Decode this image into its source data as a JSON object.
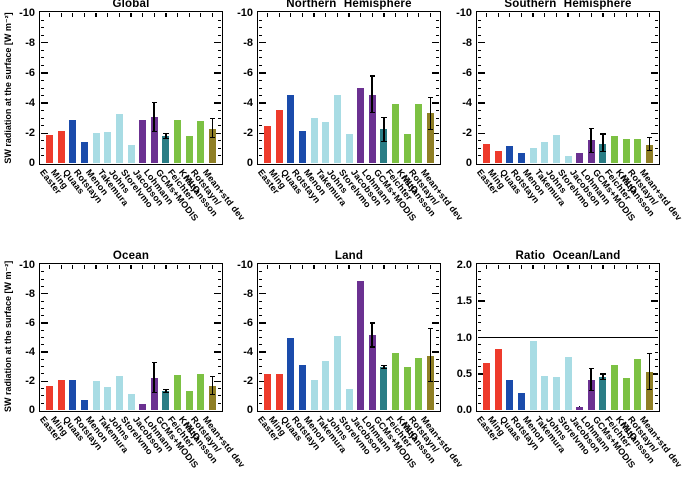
{
  "chart_meta": {
    "ylabel": "SW radiation at the surface [W m⁻²]",
    "categories": [
      "Easter",
      "Ming",
      "Quaas",
      "Rotstayn",
      "Menon",
      "Takemura",
      "Johns",
      "Storelvmo",
      "Jacobson",
      "Lohmann",
      "GCMs+MODIS",
      "Feichter",
      "Kristjansson",
      "Rotstayn/MLO",
      "Mean+std dev"
    ],
    "display_labels": [
      "Easter",
      "Ming",
      "Quaas",
      "Rotstayn",
      "Menon",
      "Takemura",
      "Johns",
      "Storelvmo",
      "Jacobson",
      "Lohmann",
      "GCMs+MODIS",
      "Feichter",
      "Kristjansson",
      "Rotstayn/\nMLO",
      "Mean+std dev"
    ],
    "category_colors": [
      "red",
      "red",
      "blue",
      "blue",
      "cyan",
      "cyan",
      "cyan",
      "cyan",
      "purple",
      "purple",
      "teal",
      "green",
      "green",
      "green",
      "olive"
    ],
    "palette": {
      "red": "#ee3b2c",
      "blue": "#1a4bab",
      "cyan": "#a8dce4",
      "purple": "#6b3191",
      "teal": "#2a7d85",
      "green": "#7cc143",
      "olive": "#8f7f25",
      "axis": "#000000",
      "background": "#ffffff"
    }
  },
  "chart_data": [
    {
      "type": "bar",
      "title": "Global",
      "axis": "radiation",
      "ylim": [
        0,
        -10
      ],
      "yticks": [
        "0",
        "-2",
        "-4",
        "-6",
        "-8",
        "-10"
      ],
      "refline": null,
      "values": [
        -1.9,
        -2.15,
        -2.9,
        -1.4,
        -2.0,
        -2.05,
        -3.25,
        -1.2,
        -2.9,
        -3.05,
        -1.85,
        -2.9,
        -1.8,
        -2.8,
        -2.25
      ],
      "errors": [
        null,
        null,
        null,
        null,
        null,
        null,
        null,
        null,
        null,
        [
          -2.1,
          -4.05
        ],
        [
          -1.65,
          -2.0
        ],
        null,
        null,
        null,
        [
          -1.7,
          -3.0
        ]
      ]
    },
    {
      "type": "bar",
      "title": "Northern Hemisphere",
      "axis": "radiation",
      "ylim": [
        0,
        -10
      ],
      "yticks": [
        "0",
        "-2",
        "-4",
        "-6",
        "-8",
        "-10"
      ],
      "refline": null,
      "values": [
        -2.5,
        -3.55,
        -4.55,
        -2.15,
        -3.0,
        -2.75,
        -4.55,
        -1.95,
        -5.0,
        -4.55,
        -2.25,
        -3.95,
        -1.95,
        -3.95,
        -3.35
      ],
      "errors": [
        null,
        null,
        null,
        null,
        null,
        null,
        null,
        null,
        null,
        [
          -3.4,
          -5.8
        ],
        [
          -1.45,
          -3.05
        ],
        null,
        null,
        null,
        [
          -2.25,
          -4.4
        ]
      ]
    },
    {
      "type": "bar",
      "title": "Southern Hemisphere",
      "axis": "radiation",
      "ylim": [
        0,
        -10
      ],
      "yticks": [
        "0",
        "-2",
        "-4",
        "-6",
        "-8",
        "-10"
      ],
      "refline": null,
      "values": [
        -1.3,
        -0.85,
        -1.15,
        -0.7,
        -1.0,
        -1.4,
        -1.9,
        -0.5,
        -0.7,
        -1.55,
        -1.3,
        -1.8,
        -1.65,
        -1.65,
        -1.25
      ],
      "errors": [
        null,
        null,
        null,
        null,
        null,
        null,
        null,
        null,
        null,
        [
          -0.75,
          -2.3
        ],
        [
          -0.8,
          -1.95
        ],
        null,
        null,
        null,
        [
          -0.85,
          -1.7
        ]
      ]
    },
    {
      "type": "bar",
      "title": "Ocean",
      "axis": "radiation",
      "ylim": [
        0,
        -10
      ],
      "yticks": [
        "0",
        "-2",
        "-4",
        "-6",
        "-8",
        "-10"
      ],
      "refline": null,
      "values": [
        -1.65,
        -2.1,
        -2.1,
        -0.7,
        -2.0,
        -1.6,
        -2.35,
        -1.1,
        -0.45,
        -2.25,
        -1.35,
        -2.45,
        -1.3,
        -2.5,
        -1.7
      ],
      "errors": [
        null,
        null,
        null,
        null,
        null,
        null,
        null,
        null,
        null,
        [
          -1.2,
          -3.3
        ],
        [
          -1.25,
          -1.45
        ],
        null,
        null,
        null,
        [
          -1.1,
          -2.35
        ]
      ]
    },
    {
      "type": "bar",
      "title": "Land",
      "axis": "radiation",
      "ylim": [
        0,
        -10
      ],
      "yticks": [
        "0",
        "-2",
        "-4",
        "-6",
        "-8",
        "-10"
      ],
      "refline": null,
      "values": [
        -2.5,
        -2.5,
        -5.0,
        -3.1,
        -2.1,
        -3.4,
        -5.1,
        -1.5,
        -8.9,
        -5.15,
        -2.95,
        -3.95,
        -3.0,
        -3.6,
        -3.75
      ],
      "errors": [
        null,
        null,
        null,
        null,
        null,
        null,
        null,
        null,
        null,
        [
          -4.35,
          -6.0
        ],
        [
          -2.85,
          -3.1
        ],
        null,
        null,
        null,
        [
          -2.0,
          -5.6
        ]
      ]
    },
    {
      "type": "bar",
      "title": "Ratio Ocean/Land",
      "axis": "ratio",
      "ylim": [
        0,
        2
      ],
      "yticks": [
        "0.0",
        "0.5",
        "1.0",
        "1.5",
        "2.0"
      ],
      "refline": 1.0,
      "values": [
        0.65,
        0.84,
        0.42,
        0.24,
        0.95,
        0.47,
        0.46,
        0.73,
        0.05,
        0.42,
        0.46,
        0.62,
        0.44,
        0.7,
        0.53
      ],
      "errors": [
        null,
        null,
        null,
        null,
        null,
        null,
        null,
        null,
        null,
        [
          0.27,
          0.58
        ],
        [
          0.42,
          0.5
        ],
        null,
        null,
        null,
        [
          0.29,
          0.78
        ]
      ]
    }
  ]
}
